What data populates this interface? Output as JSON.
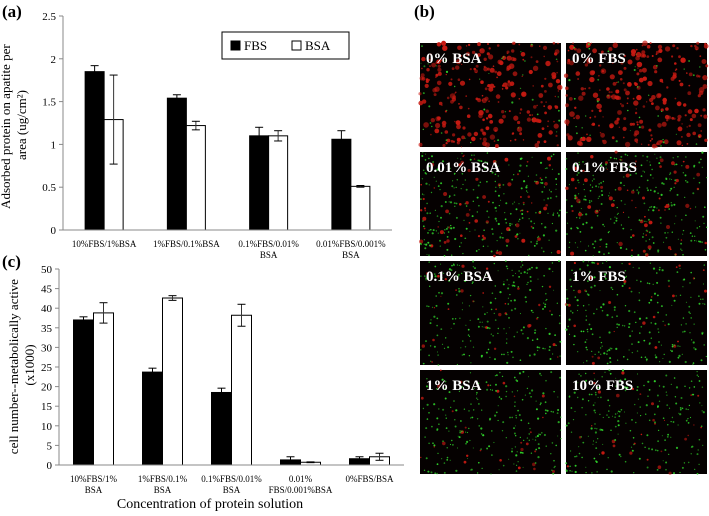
{
  "panels": {
    "a_label": "(a)",
    "b_label": "(b)",
    "c_label": "(c)"
  },
  "micrographs": [
    {
      "label": "0% BSA",
      "style": "red"
    },
    {
      "label": "0% FBS",
      "style": "red"
    },
    {
      "label": "0.01% BSA",
      "style": "mixed"
    },
    {
      "label": "0.1% FBS",
      "style": "mixed"
    },
    {
      "label": "0.1% BSA",
      "style": "green"
    },
    {
      "label": "1% FBS",
      "style": "green"
    },
    {
      "label": "1% BSA",
      "style": "green"
    },
    {
      "label": "10% FBS",
      "style": "green"
    }
  ],
  "colors": {
    "fbs_fill": "#000000",
    "bsa_fill": "#ffffff",
    "micrograph_bg": "#050101",
    "red_cell": "#c81a12",
    "green_cell": "#2fd02a",
    "label_text": "#ffffff"
  },
  "chart_data": [
    {
      "type": "bar",
      "panel": "a",
      "ylabel": "Adsorbed protein on apatite per area (ug/cm²)",
      "xlabel": "",
      "ylim": [
        0,
        2.5
      ],
      "yticks": [
        "0",
        "0.5",
        "1",
        "1.5",
        "2",
        "2.5"
      ],
      "categories": [
        "10%FBS/1%BSA",
        "1%FBS/0.1%BSA",
        "0.1%FBS/0.01% BSA",
        "0.01%FBS/0.001% BSA"
      ],
      "series": [
        {
          "name": "FBS",
          "values": [
            1.85,
            1.54,
            1.1,
            1.06
          ],
          "errors": [
            0.07,
            0.04,
            0.1,
            0.1
          ]
        },
        {
          "name": "BSA",
          "values": [
            1.29,
            1.22,
            1.1,
            0.51
          ],
          "errors": [
            0.52,
            0.05,
            0.06,
            0.01
          ]
        }
      ],
      "legend": "top-right",
      "grid": false
    },
    {
      "type": "bar",
      "panel": "c",
      "ylabel": "cell number--metabolically active (x1000)",
      "xlabel": "Concentration of protein solution",
      "ylim": [
        0,
        50
      ],
      "yticks": [
        "0",
        "5",
        "10",
        "15",
        "20",
        "25",
        "30",
        "35",
        "40",
        "45",
        "50"
      ],
      "categories": [
        "10%FBS/1% BSA",
        "1%FBS/0.1% BSA",
        "0.1%FBS/0.01% BSA",
        "0.01% FBS/0.001%BSA",
        "0%FBS/BSA"
      ],
      "series": [
        {
          "name": "FBS",
          "values": [
            37.0,
            23.7,
            18.5,
            1.3,
            1.6
          ],
          "errors": [
            0.8,
            1.0,
            1.1,
            0.8,
            0.5
          ]
        },
        {
          "name": "BSA",
          "values": [
            38.8,
            42.6,
            38.2,
            0.7,
            2.1
          ],
          "errors": [
            2.6,
            0.6,
            2.8,
            0.1,
            0.9
          ]
        }
      ],
      "legend": "none",
      "grid": false
    }
  ]
}
